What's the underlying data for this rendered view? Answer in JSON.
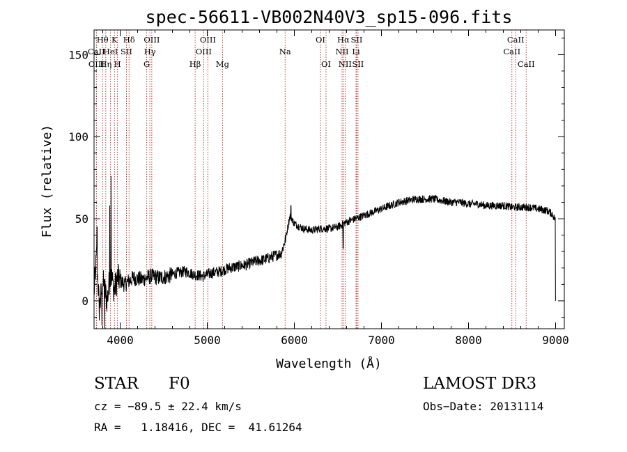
{
  "chart_data": {
    "type": "line",
    "title": "spec-56611-VB002N40V3_sp15-096.fits",
    "xlabel": "Wavelength (Å)",
    "ylabel": "Flux (relative)",
    "xlim": [
      3700,
      9100
    ],
    "ylim": [
      -17,
      165
    ],
    "x_ticks": [
      4000,
      5000,
      6000,
      7000,
      8000,
      9000
    ],
    "y_ticks": [
      0,
      50,
      100,
      150
    ],
    "grid": false,
    "line_color": "#000000",
    "marker_color": "#b22222",
    "spectrum_anchors": [
      [
        3700,
        5
      ],
      [
        3730,
        28
      ],
      [
        3760,
        -5
      ],
      [
        3800,
        12
      ],
      [
        3850,
        0
      ],
      [
        3890,
        18
      ],
      [
        3930,
        6
      ],
      [
        3970,
        14
      ],
      [
        4050,
        10
      ],
      [
        4150,
        14
      ],
      [
        4250,
        13
      ],
      [
        4350,
        15
      ],
      [
        4450,
        14
      ],
      [
        4550,
        15
      ],
      [
        4650,
        17
      ],
      [
        4750,
        18
      ],
      [
        4850,
        16
      ],
      [
        4950,
        15
      ],
      [
        5050,
        17
      ],
      [
        5150,
        18
      ],
      [
        5250,
        20
      ],
      [
        5350,
        21
      ],
      [
        5450,
        22
      ],
      [
        5550,
        24
      ],
      [
        5650,
        25
      ],
      [
        5750,
        27
      ],
      [
        5850,
        29
      ],
      [
        5900,
        38
      ],
      [
        5950,
        52
      ],
      [
        6000,
        47
      ],
      [
        6100,
        44
      ],
      [
        6200,
        43
      ],
      [
        6300,
        44
      ],
      [
        6400,
        44
      ],
      [
        6500,
        45
      ],
      [
        6600,
        48
      ],
      [
        6700,
        50
      ],
      [
        6800,
        52
      ],
      [
        6900,
        54
      ],
      [
        7000,
        56
      ],
      [
        7100,
        58
      ],
      [
        7200,
        60
      ],
      [
        7300,
        61
      ],
      [
        7400,
        62
      ],
      [
        7500,
        62
      ],
      [
        7600,
        62
      ],
      [
        7700,
        61
      ],
      [
        7800,
        60
      ],
      [
        7900,
        60
      ],
      [
        8000,
        59
      ],
      [
        8100,
        59
      ],
      [
        8200,
        58
      ],
      [
        8300,
        58
      ],
      [
        8400,
        58
      ],
      [
        8500,
        57
      ],
      [
        8600,
        57
      ],
      [
        8700,
        57
      ],
      [
        8800,
        56
      ],
      [
        8900,
        55
      ],
      [
        8960,
        53
      ],
      [
        8990,
        50
      ]
    ],
    "spikes": [
      [
        3895,
        76
      ],
      [
        3880,
        58
      ],
      [
        3735,
        45
      ],
      [
        5960,
        58
      ],
      [
        6560,
        32
      ],
      [
        3790,
        -15
      ],
      [
        3820,
        -17
      ]
    ],
    "lines": [
      {
        "label": "Hθ",
        "x": 3798,
        "row": 0
      },
      {
        "label": "CaII",
        "x": 3727,
        "row": 1
      },
      {
        "label": "OIII",
        "x": 3727,
        "row": 2
      },
      {
        "label": "K",
        "x": 3934,
        "row": 0
      },
      {
        "label": "HeI",
        "x": 3889,
        "row": 1
      },
      {
        "label": "Hη",
        "x": 3835,
        "row": 2
      },
      {
        "label": "Hδ",
        "x": 4102,
        "row": 0
      },
      {
        "label": "SII",
        "x": 4072,
        "row": 1
      },
      {
        "label": "H",
        "x": 3969,
        "row": 2
      },
      {
        "label": "OIII",
        "x": 4363,
        "row": 0
      },
      {
        "label": "Hγ",
        "x": 4341,
        "row": 1
      },
      {
        "label": "G",
        "x": 4305,
        "row": 2
      },
      {
        "label": "OIII",
        "x": 5007,
        "row": 0
      },
      {
        "label": "OIII",
        "x": 4959,
        "row": 1
      },
      {
        "label": "Hβ",
        "x": 4861,
        "row": 2
      },
      {
        "label": "Mg",
        "x": 5175,
        "row": 2
      },
      {
        "label": "Na",
        "x": 5894,
        "row": 1
      },
      {
        "label": "OI",
        "x": 6300,
        "row": 0
      },
      {
        "label": "OI",
        "x": 6364,
        "row": 2
      },
      {
        "label": "Hα",
        "x": 6563,
        "row": 0
      },
      {
        "label": "NII",
        "x": 6548,
        "row": 1
      },
      {
        "label": "NII",
        "x": 6583,
        "row": 2
      },
      {
        "label": "SII",
        "x": 6716,
        "row": 0
      },
      {
        "label": "Li",
        "x": 6708,
        "row": 1
      },
      {
        "label": "SII",
        "x": 6731,
        "row": 2
      },
      {
        "label": "CaII",
        "x": 8542,
        "row": 0
      },
      {
        "label": "CaII",
        "x": 8498,
        "row": 1
      },
      {
        "label": "CaII",
        "x": 8662,
        "row": 2
      }
    ]
  },
  "info": {
    "class": "STAR",
    "subclass": "F0",
    "survey": "LAMOST DR3",
    "cz": "cz = −89.5 ± 22.4 km/s",
    "obs_date": "Obs−Date: 20131114",
    "radec": "RA =   1.18416, DEC =  41.61264"
  }
}
